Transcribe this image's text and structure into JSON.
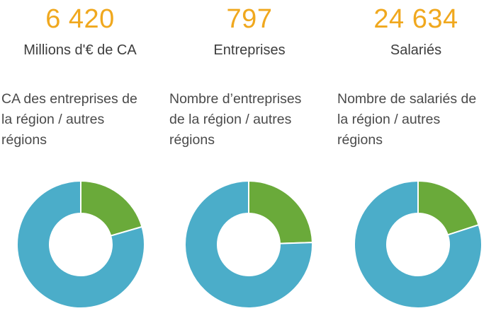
{
  "stats": [
    {
      "value": "6 420",
      "label": "Millions d'€ de CA"
    },
    {
      "value": "797",
      "label": "Entreprises"
    },
    {
      "value": "24 634",
      "label": "Salariés"
    }
  ],
  "colors": {
    "accent": "#f0a81e",
    "region": "#6aaa3a",
    "others": "#4badc9"
  },
  "chart_data": [
    {
      "type": "pie",
      "title_lines": [
        "CA des entreprises de",
        "la région / autres",
        "régions"
      ],
      "slices": [
        {
          "value": 20.5,
          "color": "#6aaa3a"
        },
        {
          "value": 79.5,
          "color": "#4badc9"
        }
      ]
    },
    {
      "type": "pie",
      "title_lines": [
        "Nombre d’entreprises",
        "de la région / autres",
        "régions"
      ],
      "slices": [
        {
          "value": 24.5,
          "color": "#6aaa3a"
        },
        {
          "value": 75.5,
          "color": "#4badc9"
        }
      ]
    },
    {
      "type": "pie",
      "title_lines": [
        "Nombre de salariés de",
        "la région / autres",
        "régions"
      ],
      "slices": [
        {
          "value": 20.0,
          "color": "#6aaa3a"
        },
        {
          "value": 80.0,
          "color": "#4badc9"
        }
      ]
    }
  ]
}
